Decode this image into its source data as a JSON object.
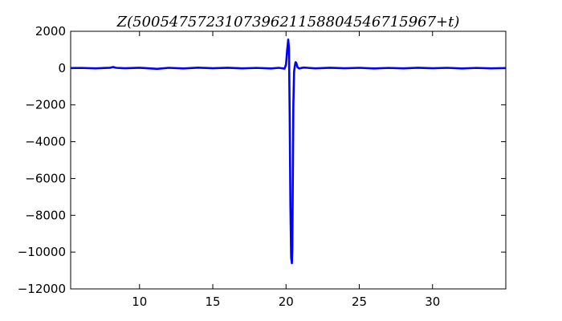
{
  "chart_data": {
    "type": "line",
    "title": "Z(500547572310739621158804546715967+t)",
    "xlabel": "",
    "ylabel": "",
    "xlim": [
      5.3,
      35.0
    ],
    "ylim": [
      -12000,
      2000
    ],
    "x_ticks": [
      10,
      15,
      20,
      25,
      30
    ],
    "x_tick_labels": [
      "10",
      "15",
      "20",
      "25",
      "30"
    ],
    "y_ticks": [
      2000,
      0,
      -2000,
      -4000,
      -6000,
      -8000,
      -10000,
      -12000
    ],
    "y_tick_labels": [
      "2000",
      "0",
      "−2000",
      "−4000",
      "−6000",
      "−8000",
      "−10000",
      "−12000"
    ],
    "grid": false,
    "legend": "none",
    "series": [
      {
        "color": "#0000ff",
        "x": [
          5.3,
          6.0,
          7.0,
          8.0,
          8.2,
          8.4,
          9.0,
          10.0,
          11.0,
          11.2,
          12.0,
          13.0,
          14.0,
          15.0,
          16.0,
          17.0,
          18.0,
          19.0,
          19.5,
          19.9,
          20.0,
          20.08,
          20.15,
          20.2,
          20.25,
          20.3,
          20.35,
          20.4,
          20.43,
          20.46,
          20.5,
          20.55,
          20.6,
          20.65,
          20.7,
          20.78,
          20.9,
          21.2,
          22.0,
          23.0,
          24.0,
          25.0,
          26.0,
          27.0,
          28.0,
          29.0,
          30.0,
          31.0,
          32.0,
          33.0,
          34.0,
          35.0
        ],
        "y": [
          0,
          10,
          -15,
          20,
          60,
          15,
          -10,
          20,
          -30,
          -40,
          15,
          -20,
          25,
          -10,
          20,
          -15,
          10,
          -20,
          15,
          -30,
          200,
          1000,
          1550,
          1100,
          -2500,
          -7500,
          -10300,
          -10600,
          -9800,
          -6500,
          -2000,
          -200,
          100,
          320,
          280,
          50,
          -20,
          30,
          -15,
          20,
          -10,
          15,
          -20,
          10,
          -15,
          20,
          -10,
          15,
          -20,
          10,
          -15,
          0
        ]
      }
    ]
  }
}
